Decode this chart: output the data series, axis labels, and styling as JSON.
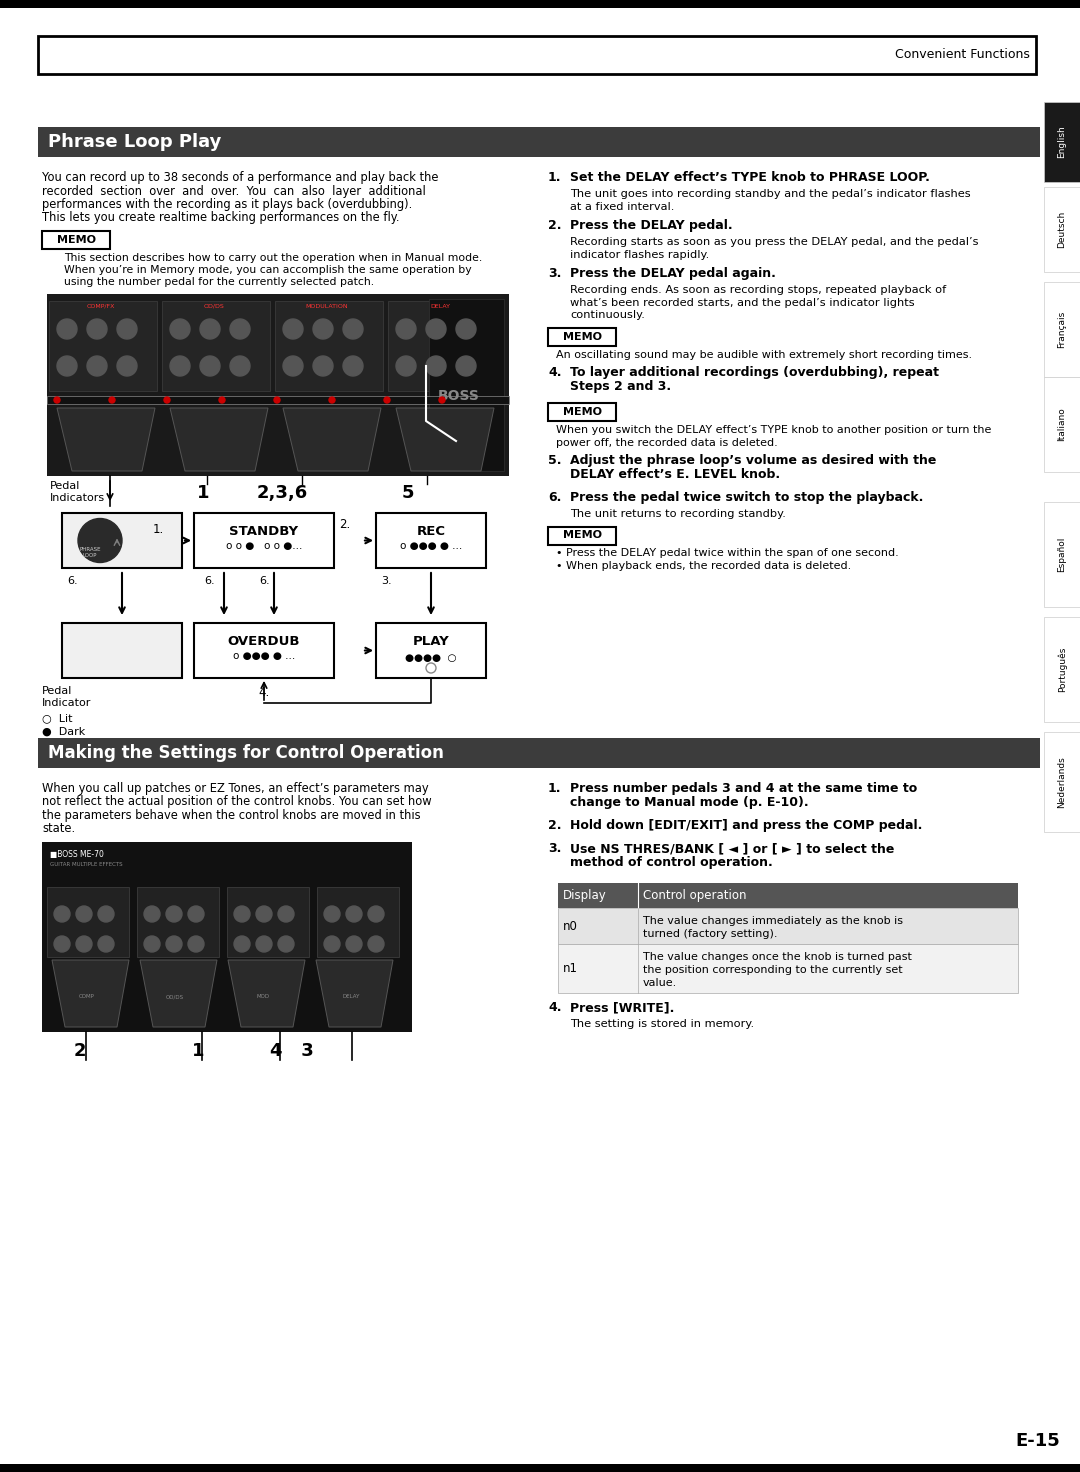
{
  "page_bg": "#ffffff",
  "header_text": "Convenient Functions",
  "section1_title": "Phrase Loop Play",
  "section1_body_lines": [
    "You can record up to 38 seconds of a performance and play back the",
    "recorded  section  over  and  over.  You  can  also  layer  additional",
    "performances with the recording as it plays back (overdubbing).",
    "This lets you create realtime backing performances on the fly."
  ],
  "memo1_lines": [
    "This section describes how to carry out the operation when in Manual mode.",
    "When you’re in Memory mode, you can accomplish the same operation by",
    "using the number pedal for the currently selected patch."
  ],
  "step1_title": "Set the DELAY effect’s TYPE knob to PHRASE LOOP.",
  "step1_body": [
    "The unit goes into recording standby and the pedal’s indicator flashes",
    "at a fixed interval."
  ],
  "step2_title": "Press the DELAY pedal.",
  "step2_body": [
    "Recording starts as soon as you press the DELAY pedal, and the pedal’s",
    "indicator flashes rapidly."
  ],
  "step3_title": "Press the DELAY pedal again.",
  "step3_body": [
    "Recording ends. As soon as recording stops, repeated playback of",
    "what’s been recorded starts, and the pedal’s indicator lights",
    "continuously."
  ],
  "memo2_line": "An oscillating sound may be audible with extremely short recording times.",
  "step4_title_lines": [
    "To layer additional recordings (overdubbing), repeat",
    "Steps 2 and 3."
  ],
  "memo3_lines": [
    "When you switch the DELAY effect’s TYPE knob to another position or turn the",
    "power off, the recorded data is deleted."
  ],
  "step5_title_lines": [
    "Adjust the phrase loop’s volume as desired with the",
    "DELAY effect’s E. LEVEL knob."
  ],
  "step6_title": "Press the pedal twice switch to stop the playback.",
  "step6_body": "The unit returns to recording standby.",
  "memo4_bullets": [
    "Press the DELAY pedal twice within the span of one second.",
    "When playback ends, the recorded data is deleted."
  ],
  "section2_title": "Making the Settings for Control Operation",
  "section2_body_lines": [
    "When you call up patches or EZ Tones, an effect’s parameters may",
    "not reflect the actual position of the control knobs. You can set how",
    "the parameters behave when the control knobs are moved in this",
    "state."
  ],
  "ctrl_step1_lines": [
    "Press number pedals 3 and 4 at the same time to",
    "change to Manual mode (p. E-10)."
  ],
  "ctrl_step2": "Hold down [EDIT/EXIT] and press the COMP pedal.",
  "ctrl_step3_lines": [
    "Use NS THRES/BANK [ ◄ ] or [ ► ] to select the",
    "method of control operation."
  ],
  "ctrl_table_header": [
    "Display",
    "Control operation"
  ],
  "ctrl_table_rows": [
    [
      "n0",
      [
        "The value changes immediately as the knob is",
        "turned (factory setting)."
      ]
    ],
    [
      "n1",
      [
        "The value changes once the knob is turned past",
        "the position corresponding to the currently set",
        "value."
      ]
    ]
  ],
  "ctrl_step4_title": "Press [WRITE].",
  "ctrl_step4_body": "The setting is stored in memory.",
  "side_labels": [
    "English",
    "Deutsch",
    "Français",
    "Italiano",
    "Español",
    "Português",
    "Nederlands"
  ],
  "page_number": "E-15"
}
